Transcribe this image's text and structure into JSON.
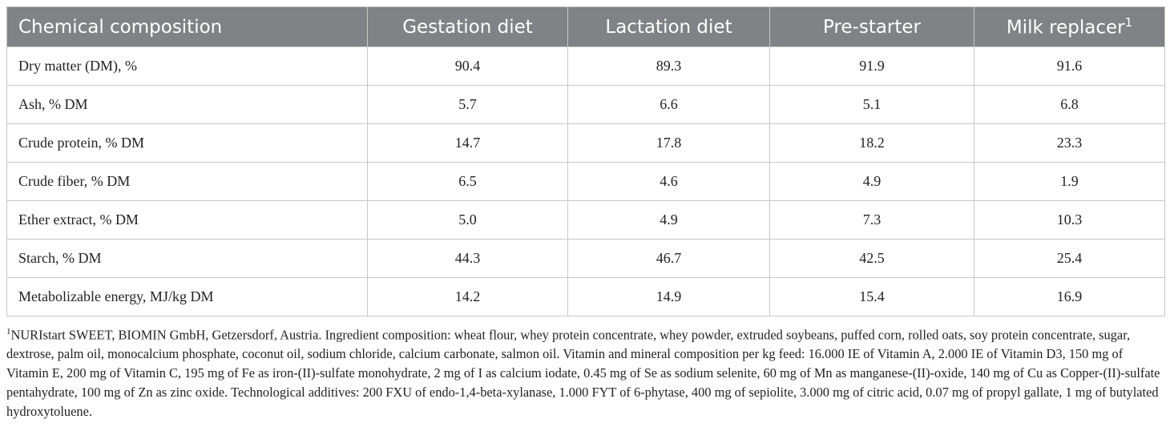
{
  "table": {
    "header": [
      "Chemical composition",
      "Gestation diet",
      "Lactation diet",
      "Pre-starter",
      "Milk replacer"
    ],
    "header_note": "1",
    "rows": [
      [
        "Dry matter (DM), %",
        "90.4",
        "89.3",
        "91.9",
        "91.6"
      ],
      [
        "Ash, % DM",
        "5.7",
        "6.6",
        "5.1",
        "6.8"
      ],
      [
        "Crude protein, % DM",
        "14.7",
        "17.8",
        "18.2",
        "23.3"
      ],
      [
        "Crude fiber, % DM",
        "6.5",
        "4.6",
        "4.9",
        "1.9"
      ],
      [
        "Ether extract, % DM",
        "5.0",
        "4.9",
        "7.3",
        "10.3"
      ],
      [
        "Starch, % DM",
        "44.3",
        "46.7",
        "42.5",
        "25.4"
      ],
      [
        "Metabolizable energy, MJ/kg DM",
        "14.2",
        "14.9",
        "15.4",
        "16.9"
      ]
    ]
  },
  "footnote": {
    "mark": "1",
    "text": "NURIstart SWEET, BIOMIN GmbH, Getzersdorf, Austria. Ingredient composition: wheat flour, whey protein concentrate, whey powder, extruded soybeans, puffed corn, rolled oats, soy protein concentrate, sugar, dextrose, palm oil, monocalcium phosphate, coconut oil, sodium chloride, calcium carbonate, salmon oil. Vitamin and mineral composition per kg feed: 16.000 IE of Vitamin A, 2.000 IE of Vitamin D3, 150 mg of Vitamin E, 200 mg of Vitamin C, 195 mg of Fe as iron-(II)-sulfate monohydrate, 2 mg of I as calcium iodate, 0.45 mg of Se as sodium selenite, 60 mg of Mn as manganese-(II)-oxide, 140 mg of Cu as Copper-(II)-sulfate pentahydrate, 100 mg of Zn as zinc oxide. Technological additives: 200 FXU of endo-1,4-beta-xylanase, 1.000 FYT of 6-phytase, 400 mg of sepiolite, 3.000 mg of citric acid, 0.07 mg of propyl gallate, 1 mg of butylated hydroxytoluene."
  }
}
